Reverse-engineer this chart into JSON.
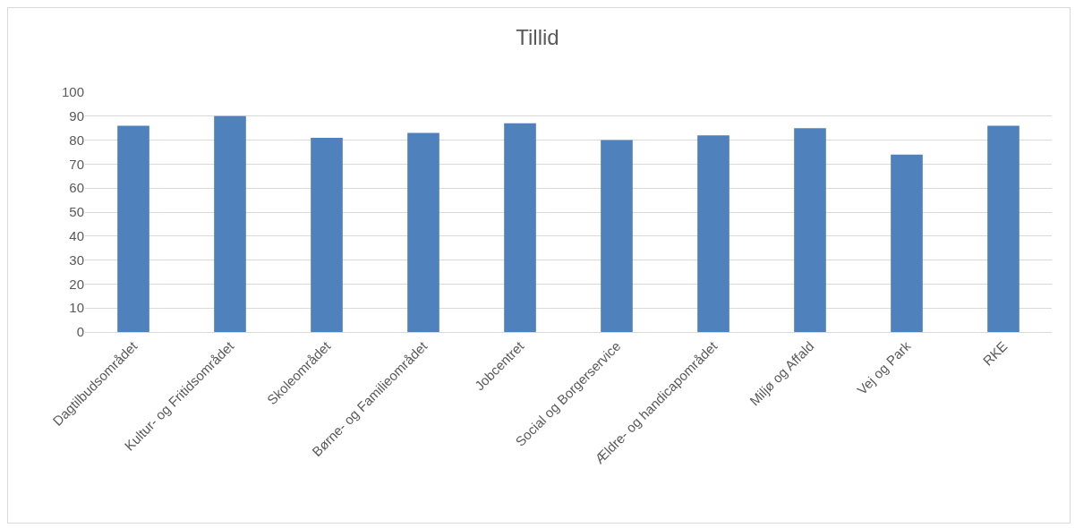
{
  "chart_data": {
    "type": "bar",
    "title": "Tillid",
    "categories": [
      "Dagtilbudsområdet",
      "Kultur- og Fritidsområdet",
      "Skoleområdet",
      "Børne- og Familieområdet",
      "Jobcentret",
      "Social og Borgerservice",
      "Ældre- og handicapområdet",
      "Miljø og Affald",
      "Vej og Park",
      "RKE"
    ],
    "values": [
      86,
      90,
      81,
      83,
      87,
      80,
      82,
      85,
      74,
      86
    ],
    "color": "#4f81bd",
    "ylim": [
      0,
      100
    ],
    "yticks": [
      0,
      10,
      20,
      30,
      40,
      50,
      60,
      70,
      80,
      90,
      100
    ],
    "grid": "y",
    "legend": false
  }
}
